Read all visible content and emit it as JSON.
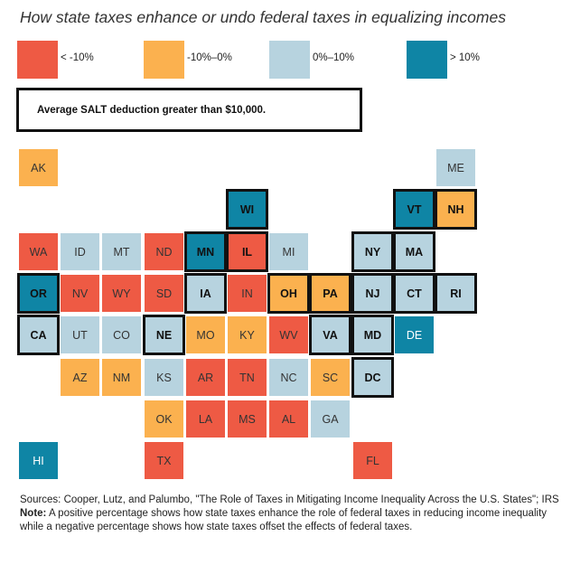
{
  "title": "How state taxes enhance or undo federal taxes in equalizing incomes",
  "colors": {
    "neg_large": "#ee5a44",
    "neg_small": "#fbb14f",
    "pos_small": "#b7d3df",
    "pos_large": "#0f85a5"
  },
  "legend": [
    {
      "label": "< -10%",
      "class": "neg_large"
    },
    {
      "label": "-10%–0%",
      "class": "neg_small"
    },
    {
      "label": "0%–10%",
      "class": "pos_small"
    },
    {
      "label": "> 10%",
      "class": "pos_large"
    }
  ],
  "salt_legend_label": "Average SALT deduction greater than $10,000.",
  "states": [
    {
      "code": "AK",
      "col": 0,
      "row": 0,
      "class": "neg_small",
      "salt": false
    },
    {
      "code": "ME",
      "col": 10,
      "row": 0,
      "class": "pos_small",
      "salt": false
    },
    {
      "code": "WI",
      "col": 5,
      "row": 1,
      "class": "pos_large",
      "salt": true
    },
    {
      "code": "VT",
      "col": 9,
      "row": 1,
      "class": "pos_large",
      "salt": true
    },
    {
      "code": "NH",
      "col": 10,
      "row": 1,
      "class": "neg_small",
      "salt": true
    },
    {
      "code": "WA",
      "col": 0,
      "row": 2,
      "class": "neg_large",
      "salt": false
    },
    {
      "code": "ID",
      "col": 1,
      "row": 2,
      "class": "pos_small",
      "salt": false
    },
    {
      "code": "MT",
      "col": 2,
      "row": 2,
      "class": "pos_small",
      "salt": false
    },
    {
      "code": "ND",
      "col": 3,
      "row": 2,
      "class": "neg_large",
      "salt": false
    },
    {
      "code": "MN",
      "col": 4,
      "row": 2,
      "class": "pos_large",
      "salt": true
    },
    {
      "code": "IL",
      "col": 5,
      "row": 2,
      "class": "neg_large",
      "salt": true
    },
    {
      "code": "MI",
      "col": 6,
      "row": 2,
      "class": "pos_small",
      "salt": false
    },
    {
      "code": "NY",
      "col": 8,
      "row": 2,
      "class": "pos_small",
      "salt": true
    },
    {
      "code": "MA",
      "col": 9,
      "row": 2,
      "class": "pos_small",
      "salt": true
    },
    {
      "code": "OR",
      "col": 0,
      "row": 3,
      "class": "pos_large",
      "salt": true
    },
    {
      "code": "NV",
      "col": 1,
      "row": 3,
      "class": "neg_large",
      "salt": false
    },
    {
      "code": "WY",
      "col": 2,
      "row": 3,
      "class": "neg_large",
      "salt": false
    },
    {
      "code": "SD",
      "col": 3,
      "row": 3,
      "class": "neg_large",
      "salt": false
    },
    {
      "code": "IA",
      "col": 4,
      "row": 3,
      "class": "pos_small",
      "salt": true
    },
    {
      "code": "IN",
      "col": 5,
      "row": 3,
      "class": "neg_large",
      "salt": false
    },
    {
      "code": "OH",
      "col": 6,
      "row": 3,
      "class": "neg_small",
      "salt": true
    },
    {
      "code": "PA",
      "col": 7,
      "row": 3,
      "class": "neg_small",
      "salt": true
    },
    {
      "code": "NJ",
      "col": 8,
      "row": 3,
      "class": "pos_small",
      "salt": true
    },
    {
      "code": "CT",
      "col": 9,
      "row": 3,
      "class": "pos_small",
      "salt": true
    },
    {
      "code": "RI",
      "col": 10,
      "row": 3,
      "class": "pos_small",
      "salt": true
    },
    {
      "code": "CA",
      "col": 0,
      "row": 4,
      "class": "pos_small",
      "salt": true
    },
    {
      "code": "UT",
      "col": 1,
      "row": 4,
      "class": "pos_small",
      "salt": false
    },
    {
      "code": "CO",
      "col": 2,
      "row": 4,
      "class": "pos_small",
      "salt": false
    },
    {
      "code": "NE",
      "col": 3,
      "row": 4,
      "class": "pos_small",
      "salt": true
    },
    {
      "code": "MO",
      "col": 4,
      "row": 4,
      "class": "neg_small",
      "salt": false
    },
    {
      "code": "KY",
      "col": 5,
      "row": 4,
      "class": "neg_small",
      "salt": false
    },
    {
      "code": "WV",
      "col": 6,
      "row": 4,
      "class": "neg_large",
      "salt": false
    },
    {
      "code": "VA",
      "col": 7,
      "row": 4,
      "class": "pos_small",
      "salt": true
    },
    {
      "code": "MD",
      "col": 8,
      "row": 4,
      "class": "pos_small",
      "salt": true
    },
    {
      "code": "DE",
      "col": 9,
      "row": 4,
      "class": "pos_large",
      "salt": false
    },
    {
      "code": "AZ",
      "col": 1,
      "row": 5,
      "class": "neg_small",
      "salt": false
    },
    {
      "code": "NM",
      "col": 2,
      "row": 5,
      "class": "neg_small",
      "salt": false
    },
    {
      "code": "KS",
      "col": 3,
      "row": 5,
      "class": "pos_small",
      "salt": false
    },
    {
      "code": "AR",
      "col": 4,
      "row": 5,
      "class": "neg_large",
      "salt": false
    },
    {
      "code": "TN",
      "col": 5,
      "row": 5,
      "class": "neg_large",
      "salt": false
    },
    {
      "code": "NC",
      "col": 6,
      "row": 5,
      "class": "pos_small",
      "salt": false
    },
    {
      "code": "SC",
      "col": 7,
      "row": 5,
      "class": "neg_small",
      "salt": false
    },
    {
      "code": "DC",
      "col": 8,
      "row": 5,
      "class": "pos_small",
      "salt": true
    },
    {
      "code": "OK",
      "col": 3,
      "row": 6,
      "class": "neg_small",
      "salt": false
    },
    {
      "code": "LA",
      "col": 4,
      "row": 6,
      "class": "neg_large",
      "salt": false
    },
    {
      "code": "MS",
      "col": 5,
      "row": 6,
      "class": "neg_large",
      "salt": false
    },
    {
      "code": "AL",
      "col": 6,
      "row": 6,
      "class": "neg_large",
      "salt": false
    },
    {
      "code": "GA",
      "col": 7,
      "row": 6,
      "class": "pos_small",
      "salt": false
    },
    {
      "code": "HI",
      "col": 0,
      "row": 7,
      "class": "pos_large",
      "salt": false
    },
    {
      "code": "TX",
      "col": 3,
      "row": 7,
      "class": "neg_large",
      "salt": false
    },
    {
      "code": "FL",
      "col": 8,
      "row": 7,
      "class": "neg_large",
      "salt": false
    }
  ],
  "sources_text": "Sources: Cooper, Lutz, and Palumbo, \"The Role of Taxes in Mitigating Income Inequality Across the U.S. States\"; IRS",
  "note_label": "Note:",
  "note_text": " A positive percentage shows how state taxes enhance the role of federal taxes in reducing income inequality while a negative percentage shows how state taxes offset the effects of federal taxes."
}
